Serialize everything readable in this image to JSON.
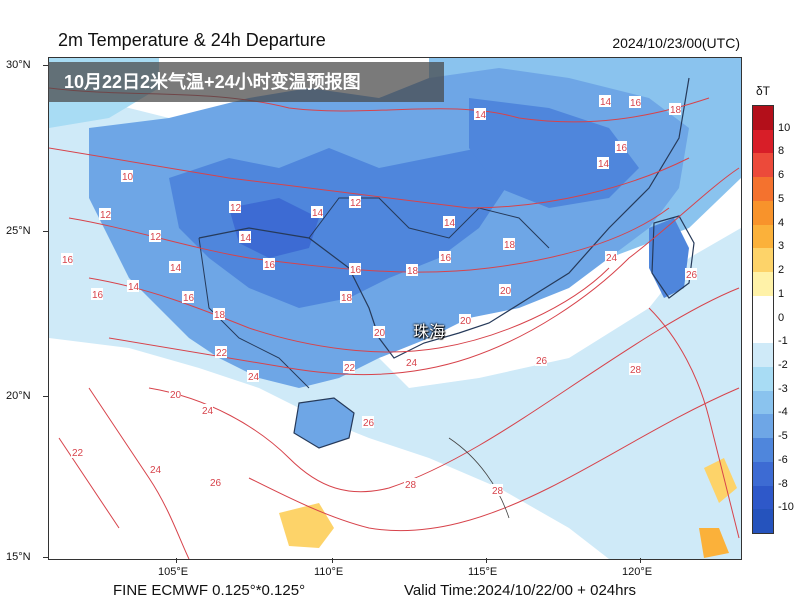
{
  "header": {
    "title": "2m Temperature & 24h Departure",
    "valid_time_top": "2024/10/23/00(UTC)",
    "overlay_title": "10月22日2米气温+24小时变温预报图"
  },
  "axes": {
    "lat_labels": [
      "30°N",
      "25°N",
      "20°N",
      "15°N"
    ],
    "lon_labels": [
      "105°E",
      "110°E",
      "115°E",
      "120°E"
    ]
  },
  "footer": {
    "model": "FINE ECMWF 0.125°*0.125°",
    "valid_time": "Valid Time:2024/10/22/00 + 024hrs"
  },
  "map_label": {
    "city": "珠海"
  },
  "colorbar": {
    "title": "δT",
    "levels": [
      "10",
      "8",
      "6",
      "5",
      "4",
      "3",
      "2",
      "1",
      "0",
      "-1",
      "-2",
      "-3",
      "-4",
      "-5",
      "-6",
      "-8",
      "-10"
    ],
    "colors": [
      "#b30f1a",
      "#d81e28",
      "#ec4a3a",
      "#f4722e",
      "#f8932b",
      "#fbb13a",
      "#fdd369",
      "#fff2a8",
      "#ffffff",
      "#ffffff",
      "#cfeaf8",
      "#a8dcf4",
      "#8ac3ee",
      "#6ea6e6",
      "#4f86dc",
      "#3d6bd3",
      "#2e58c9",
      "#2553bd"
    ]
  },
  "contours": {
    "labels": [
      "10",
      "12",
      "12",
      "12",
      "12",
      "14",
      "14",
      "14",
      "14",
      "14",
      "14",
      "14",
      "14",
      "16",
      "16",
      "16",
      "16",
      "16",
      "16",
      "16",
      "16",
      "18",
      "18",
      "18",
      "18",
      "18",
      "20",
      "20",
      "20",
      "20",
      "22",
      "22",
      "22",
      "24",
      "24",
      "24",
      "24",
      "24",
      "26",
      "26",
      "26",
      "26",
      "28",
      "28",
      "28"
    ]
  }
}
